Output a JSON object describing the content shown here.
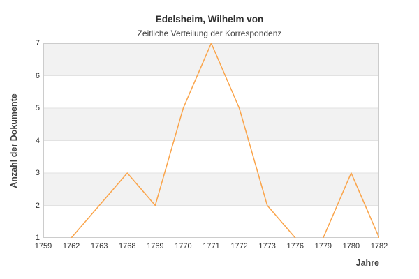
{
  "chart_data": {
    "type": "line",
    "title": "Edelsheim, Wilhelm von",
    "subtitle": "Zeitliche Verteilung der Korrespondenz",
    "xlabel": "Jahre",
    "ylabel": "Anzahl der Dokumente",
    "categories": [
      "1759",
      "1762",
      "1763",
      "1768",
      "1769",
      "1770",
      "1771",
      "1772",
      "1773",
      "1776",
      "1779",
      "1780",
      "1782"
    ],
    "values": [
      1,
      1,
      2,
      3,
      2,
      5,
      7,
      5,
      2,
      1,
      1,
      3,
      1
    ],
    "yticks": [
      7,
      6,
      5,
      4,
      3,
      2,
      1
    ],
    "ylim": [
      1,
      7
    ],
    "grid": true,
    "legend_position": "none",
    "colors": {
      "line": "#faa44a",
      "band": "#f2f2f2",
      "band_alt": "#ffffff",
      "gridline": "#e2e2e2",
      "plot_border": "#cccccc",
      "title_text": "#2d2d2d",
      "tick_text": "#2f2f2f",
      "axis_title_text": "#404040",
      "background": "#ffffff"
    },
    "notes": "Segments where consecutive values both equal the y-axis minimum (1) are not drawn: 1759-1762 and 1776-1779 appear as gaps along the baseline."
  }
}
